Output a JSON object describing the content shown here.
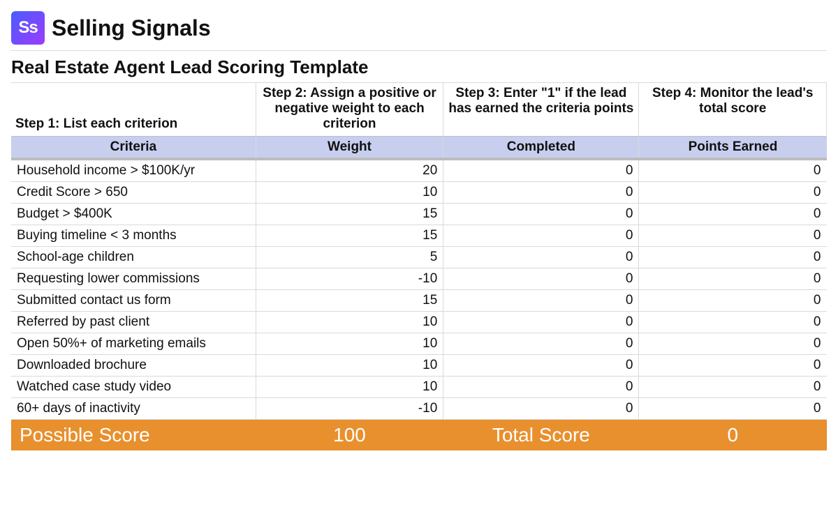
{
  "brand": {
    "logo_text": "Ss",
    "name": "Selling Signals"
  },
  "title": "Real Estate Agent Lead Scoring Template",
  "colors": {
    "header_band": "#c8ceee",
    "header_band_underline": "#bcbcbc",
    "total_row_bg": "#e8902d",
    "total_row_text": "#ffffff",
    "rule": "#d9d9d9",
    "logo_gradient_start": "#4a5cff",
    "logo_gradient_end": "#9b3cff"
  },
  "steps": {
    "s1": "Step 1: List each criterion",
    "s2": "Step 2: Assign a positive or negative weight to each criterion",
    "s3": "Step 3: Enter \"1\" if the lead has earned the criteria points",
    "s4": "Step 4: Monitor the lead's total score"
  },
  "columns": {
    "criteria": "Criteria",
    "weight": "Weight",
    "completed": "Completed",
    "points": "Points Earned"
  },
  "rows": [
    {
      "criteria": "Household income > $100K/yr",
      "weight": "20",
      "completed": "0",
      "points": "0"
    },
    {
      "criteria": "Credit Score > 650",
      "weight": "10",
      "completed": "0",
      "points": "0"
    },
    {
      "criteria": "Budget > $400K",
      "weight": "15",
      "completed": "0",
      "points": "0"
    },
    {
      "criteria": "Buying timeline < 3 months",
      "weight": "15",
      "completed": "0",
      "points": "0"
    },
    {
      "criteria": "School-age children",
      "weight": "5",
      "completed": "0",
      "points": "0"
    },
    {
      "criteria": "Requesting lower commissions",
      "weight": "-10",
      "completed": "0",
      "points": "0"
    },
    {
      "criteria": "Submitted contact us form",
      "weight": "15",
      "completed": "0",
      "points": "0"
    },
    {
      "criteria": "Referred by past client",
      "weight": "10",
      "completed": "0",
      "points": "0"
    },
    {
      "criteria": "Open 50%+ of marketing emails",
      "weight": "10",
      "completed": "0",
      "points": "0"
    },
    {
      "criteria": "Downloaded brochure",
      "weight": "10",
      "completed": "0",
      "points": "0"
    },
    {
      "criteria": "Watched case study video",
      "weight": "10",
      "completed": "0",
      "points": "0"
    },
    {
      "criteria": "60+ days of inactivity",
      "weight": "-10",
      "completed": "0",
      "points": "0"
    }
  ],
  "totals": {
    "possible_label": "Possible Score",
    "possible_value": "100",
    "total_label": "Total Score",
    "total_value": "0"
  }
}
